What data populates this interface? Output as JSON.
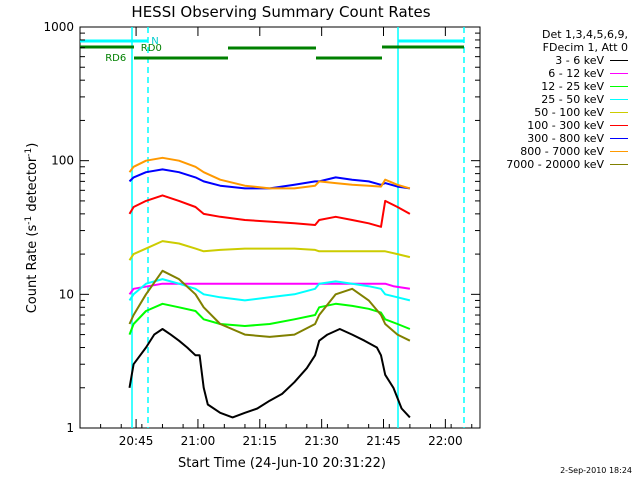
{
  "chart_data": {
    "type": "line",
    "title": "HESSI Observing Summary Count Rates",
    "xlabel": "Start Time (24-Jun-10 20:31:22)",
    "ylabel_main": "Count Rate (s",
    "ylabel_sup1": "-1",
    "ylabel_mid": " detector",
    "ylabel_sup2": "-1",
    "ylabel_end": ")",
    "y_scale": "log",
    "ylim": [
      1,
      1000
    ],
    "xlim_minutes": [
      0,
      97
    ],
    "x_ticks": [
      {
        "label": "20:45",
        "minutes": 13.6
      },
      {
        "label": "21:00",
        "minutes": 28.6
      },
      {
        "label": "21:15",
        "minutes": 43.6
      },
      {
        "label": "21:30",
        "minutes": 58.6
      },
      {
        "label": "21:45",
        "minutes": 73.6
      },
      {
        "label": "22:00",
        "minutes": 88.6
      }
    ],
    "y_ticks": [
      {
        "label": "1",
        "value": 1
      },
      {
        "label": "10",
        "value": 10
      },
      {
        "label": "100",
        "value": 100
      },
      {
        "label": "1000",
        "value": 1000
      }
    ],
    "legend_header": [
      "Det 1,3,4,5,6,9,",
      "FDecim 1, Att 0"
    ],
    "series": [
      {
        "name": "3 - 6 keV",
        "color": "#000000",
        "points": [
          [
            12,
            2
          ],
          [
            13,
            3
          ],
          [
            16,
            4
          ],
          [
            18,
            5
          ],
          [
            20,
            5.5
          ],
          [
            22,
            5
          ],
          [
            24,
            4.5
          ],
          [
            26,
            4
          ],
          [
            28,
            3.5
          ],
          [
            29,
            3.5
          ],
          [
            30,
            2
          ],
          [
            31,
            1.5
          ],
          [
            34,
            1.3
          ],
          [
            37,
            1.2
          ],
          [
            40,
            1.3
          ],
          [
            43,
            1.4
          ],
          [
            46,
            1.6
          ],
          [
            49,
            1.8
          ],
          [
            52,
            2.2
          ],
          [
            55,
            2.8
          ],
          [
            57,
            3.5
          ],
          [
            58,
            4.5
          ],
          [
            60,
            5
          ],
          [
            63,
            5.5
          ],
          [
            66,
            5
          ],
          [
            69,
            4.5
          ],
          [
            72,
            4
          ],
          [
            73,
            3.5
          ],
          [
            74,
            2.5
          ],
          [
            76,
            2
          ],
          [
            78,
            1.4
          ],
          [
            80,
            1.2
          ]
        ]
      },
      {
        "name": "6 - 12 keV",
        "color": "#ff00ff",
        "points": [
          [
            12,
            10
          ],
          [
            13,
            11
          ],
          [
            20,
            12
          ],
          [
            30,
            12
          ],
          [
            40,
            12
          ],
          [
            50,
            12
          ],
          [
            60,
            12
          ],
          [
            70,
            12
          ],
          [
            74,
            12
          ],
          [
            76,
            11.5
          ],
          [
            80,
            11
          ]
        ]
      },
      {
        "name": "12 - 25 keV",
        "color": "#00ff00",
        "points": [
          [
            12,
            5
          ],
          [
            13,
            6
          ],
          [
            16,
            7.5
          ],
          [
            20,
            8.5
          ],
          [
            24,
            8
          ],
          [
            28,
            7.5
          ],
          [
            30,
            6.5
          ],
          [
            34,
            6
          ],
          [
            40,
            5.8
          ],
          [
            46,
            6
          ],
          [
            52,
            6.5
          ],
          [
            57,
            7
          ],
          [
            58,
            8
          ],
          [
            62,
            8.5
          ],
          [
            66,
            8.2
          ],
          [
            70,
            7.8
          ],
          [
            73,
            7.3
          ],
          [
            74,
            6.5
          ],
          [
            77,
            6
          ],
          [
            80,
            5.5
          ]
        ]
      },
      {
        "name": "25 - 50 keV",
        "color": "#00ffff",
        "points": [
          [
            12,
            9
          ],
          [
            13,
            10
          ],
          [
            16,
            12
          ],
          [
            20,
            13
          ],
          [
            24,
            12
          ],
          [
            28,
            11
          ],
          [
            30,
            10
          ],
          [
            34,
            9.5
          ],
          [
            40,
            9
          ],
          [
            46,
            9.5
          ],
          [
            52,
            10
          ],
          [
            57,
            11
          ],
          [
            58,
            12
          ],
          [
            62,
            12.5
          ],
          [
            66,
            12
          ],
          [
            70,
            11.5
          ],
          [
            73,
            11
          ],
          [
            74,
            10
          ],
          [
            77,
            9.5
          ],
          [
            80,
            9
          ]
        ]
      },
      {
        "name": "50 - 100 keV",
        "color": "#cccc00",
        "points": [
          [
            12,
            18
          ],
          [
            13,
            20
          ],
          [
            16,
            22
          ],
          [
            20,
            25
          ],
          [
            24,
            24
          ],
          [
            28,
            22
          ],
          [
            30,
            21
          ],
          [
            34,
            21.5
          ],
          [
            40,
            22
          ],
          [
            46,
            22
          ],
          [
            52,
            22
          ],
          [
            57,
            21.5
          ],
          [
            58,
            21
          ],
          [
            62,
            21
          ],
          [
            66,
            21
          ],
          [
            70,
            21
          ],
          [
            73,
            21
          ],
          [
            74,
            21
          ],
          [
            77,
            20
          ],
          [
            80,
            19
          ]
        ]
      },
      {
        "name": "100 - 300 keV",
        "color": "#ff0000",
        "points": [
          [
            12,
            40
          ],
          [
            13,
            45
          ],
          [
            16,
            50
          ],
          [
            20,
            55
          ],
          [
            24,
            50
          ],
          [
            28,
            45
          ],
          [
            30,
            40
          ],
          [
            34,
            38
          ],
          [
            40,
            36
          ],
          [
            46,
            35
          ],
          [
            52,
            34
          ],
          [
            57,
            33
          ],
          [
            58,
            36
          ],
          [
            62,
            38
          ],
          [
            66,
            36
          ],
          [
            70,
            34
          ],
          [
            73,
            32
          ],
          [
            74,
            50
          ],
          [
            77,
            45
          ],
          [
            80,
            40
          ]
        ]
      },
      {
        "name": "300 - 800 keV",
        "color": "#0000ff",
        "points": [
          [
            12,
            70
          ],
          [
            13,
            75
          ],
          [
            16,
            82
          ],
          [
            20,
            86
          ],
          [
            24,
            82
          ],
          [
            28,
            75
          ],
          [
            30,
            70
          ],
          [
            34,
            65
          ],
          [
            40,
            62
          ],
          [
            46,
            62
          ],
          [
            52,
            66
          ],
          [
            57,
            70
          ],
          [
            58,
            70
          ],
          [
            62,
            75
          ],
          [
            66,
            72
          ],
          [
            70,
            70
          ],
          [
            73,
            66
          ],
          [
            74,
            68
          ],
          [
            77,
            64
          ],
          [
            80,
            62
          ]
        ]
      },
      {
        "name": "800 - 7000 keV",
        "color": "#ff9900",
        "points": [
          [
            12,
            82
          ],
          [
            13,
            90
          ],
          [
            16,
            100
          ],
          [
            20,
            105
          ],
          [
            24,
            100
          ],
          [
            28,
            90
          ],
          [
            30,
            82
          ],
          [
            34,
            72
          ],
          [
            40,
            65
          ],
          [
            46,
            62
          ],
          [
            52,
            62
          ],
          [
            57,
            65
          ],
          [
            58,
            70
          ],
          [
            62,
            68
          ],
          [
            66,
            66
          ],
          [
            70,
            65
          ],
          [
            73,
            64
          ],
          [
            74,
            72
          ],
          [
            77,
            66
          ],
          [
            80,
            62
          ]
        ]
      },
      {
        "name": "7000 - 20000 keV",
        "color": "#808000",
        "points": [
          [
            12,
            6
          ],
          [
            13,
            7
          ],
          [
            16,
            10
          ],
          [
            20,
            15
          ],
          [
            24,
            13
          ],
          [
            28,
            10
          ],
          [
            30,
            8
          ],
          [
            34,
            6
          ],
          [
            40,
            5
          ],
          [
            46,
            4.8
          ],
          [
            52,
            5
          ],
          [
            57,
            6
          ],
          [
            58,
            7
          ],
          [
            62,
            10
          ],
          [
            66,
            11
          ],
          [
            70,
            9
          ],
          [
            73,
            7
          ],
          [
            74,
            6
          ],
          [
            77,
            5
          ],
          [
            80,
            4.5
          ]
        ]
      }
    ],
    "flag_labels": {
      "n": "N",
      "rd0": "RD0",
      "rd6": "RD6"
    },
    "footer": "2-Sep-2010 18:24"
  }
}
